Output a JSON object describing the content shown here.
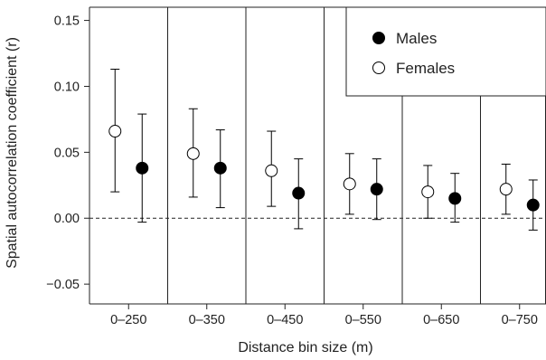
{
  "chart_data": {
    "type": "scatter",
    "xlabel": "Distance bin size (m)",
    "ylabel": "Spatial autocorrelation coefficient (r)",
    "categories": [
      "0–250",
      "0–350",
      "0–450",
      "0–550",
      "0–650",
      "0–750"
    ],
    "ylim": [
      -0.065,
      0.16
    ],
    "yticks": [
      "0.15",
      "0.10",
      "0.05",
      "0.00",
      "−0.05"
    ],
    "ytick_values": [
      0.15,
      0.1,
      0.05,
      0.0,
      -0.05
    ],
    "reference_line": 0,
    "legend": {
      "placement": "top-right",
      "items": [
        {
          "label": "Males",
          "marker": "filled-circle"
        },
        {
          "label": "Females",
          "marker": "open-circle"
        }
      ]
    },
    "series": [
      {
        "name": "Females",
        "marker": "open-circle",
        "values": [
          0.066,
          0.049,
          0.036,
          0.026,
          0.02,
          0.022
        ],
        "lower": [
          0.02,
          0.016,
          0.009,
          0.003,
          0.0,
          0.003
        ],
        "upper": [
          0.113,
          0.083,
          0.066,
          0.049,
          0.04,
          0.041
        ]
      },
      {
        "name": "Males",
        "marker": "filled-circle",
        "values": [
          0.038,
          0.038,
          0.019,
          0.022,
          0.015,
          0.01
        ],
        "lower": [
          -0.003,
          0.008,
          -0.008,
          -0.001,
          -0.003,
          -0.009
        ],
        "upper": [
          0.079,
          0.067,
          0.045,
          0.045,
          0.034,
          0.029
        ]
      }
    ],
    "colors": {
      "axis": "#222222",
      "marker": "#000000",
      "open_fill": "#ffffff"
    }
  }
}
